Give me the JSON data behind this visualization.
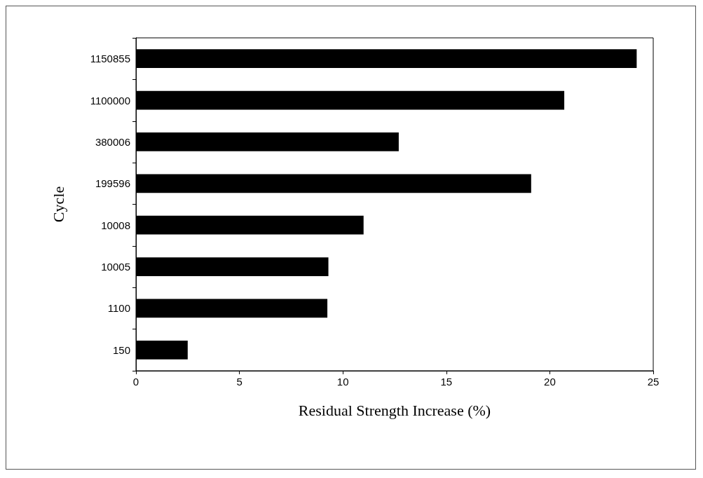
{
  "chart_data": {
    "type": "bar",
    "orientation": "horizontal",
    "xlabel": "Residual Strength Increase (%)",
    "ylabel": "Cycle",
    "categories": [
      "1150855",
      "1100000",
      "380006",
      "199596",
      "10008",
      "10005",
      "1100",
      "150"
    ],
    "values": [
      24.2,
      20.7,
      12.7,
      19.1,
      11.0,
      9.3,
      9.25,
      2.5
    ],
    "color": "#000000",
    "xlim": [
      0,
      25
    ],
    "xticks": [
      0,
      5,
      10,
      15,
      20,
      25
    ],
    "grid": false
  }
}
